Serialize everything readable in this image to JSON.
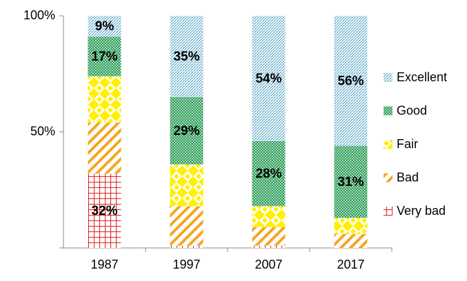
{
  "chart_data": {
    "type": "stacked_bar",
    "categories": [
      "1987",
      "1997",
      "2007",
      "2017"
    ],
    "series": [
      {
        "name": "Very bad",
        "color": "#e02020",
        "values": [
          32,
          1,
          1,
          0
        ],
        "value_labels": [
          "32%",
          null,
          null,
          null
        ]
      },
      {
        "name": "Bad",
        "color": "#f5a623",
        "values": [
          22,
          17,
          8,
          6
        ],
        "value_labels": [
          null,
          null,
          null,
          null
        ]
      },
      {
        "name": "Fair",
        "color": "#ffef00",
        "values": [
          20,
          18,
          9,
          7
        ],
        "value_labels": [
          null,
          null,
          null,
          null
        ]
      },
      {
        "name": "Good",
        "color": "#2e9e5a",
        "values": [
          17,
          29,
          28,
          31
        ],
        "value_labels": [
          "17%",
          "29%",
          "28%",
          "31%"
        ]
      },
      {
        "name": "Excellent",
        "color": "#5aa7c8",
        "values": [
          9,
          35,
          54,
          56
        ],
        "value_labels": [
          "9%",
          "35%",
          "54%",
          "56%"
        ]
      }
    ],
    "ylim": [
      0,
      100
    ],
    "yticks": [
      {
        "value": 50,
        "label": "50%"
      },
      {
        "value": 100,
        "label": "100%"
      }
    ],
    "legend": "right"
  }
}
